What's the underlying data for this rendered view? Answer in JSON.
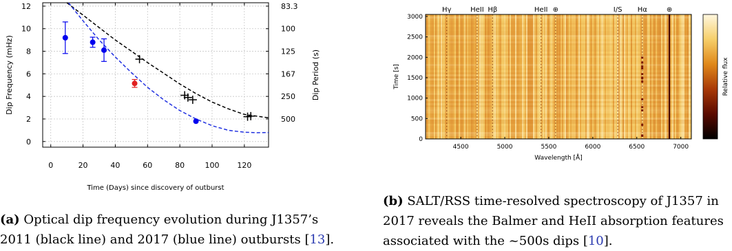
{
  "figure_a": {
    "chart_data": {
      "type": "scatter",
      "xlabel": "Time (Days) since discovery of outburst",
      "ylabel": "Dip Frequency (mHz)",
      "ylabel_right": "Dip Period (s)",
      "xlim": [
        -5,
        135
      ],
      "ylim": [
        -0.5,
        12.3
      ],
      "x_ticks": [
        0,
        20,
        40,
        60,
        80,
        100,
        120
      ],
      "y_ticks": [
        0,
        2,
        4,
        6,
        8,
        10,
        12
      ],
      "right_ticks": [
        {
          "label": "83.3",
          "freq": 12
        },
        {
          "label": "100",
          "freq": 10
        },
        {
          "label": "125",
          "freq": 8
        },
        {
          "label": "167",
          "freq": 6
        },
        {
          "label": "250",
          "freq": 4
        },
        {
          "label": "500",
          "freq": 2
        }
      ],
      "grid": true,
      "series": [
        {
          "color": "#0000ee",
          "marker": "circle",
          "points": [
            {
              "x": 9,
              "y": 9.2,
              "err": 1.4
            },
            {
              "x": 26,
              "y": 8.8,
              "err": 0.45
            },
            {
              "x": 33,
              "y": 8.1,
              "err": 1.0
            },
            {
              "x": 90,
              "y": 1.8,
              "err": 0
            }
          ]
        },
        {
          "color": "#e02020",
          "marker": "circle",
          "points": [
            {
              "x": 52,
              "y": 5.15,
              "err": 0.35
            }
          ]
        },
        {
          "color": "#000000",
          "marker": "plus",
          "points": [
            {
              "x": 55,
              "y": 7.3
            },
            {
              "x": 83,
              "y": 4.1
            },
            {
              "x": 85,
              "y": 3.9
            },
            {
              "x": 88,
              "y": 3.7
            },
            {
              "x": 122,
              "y": 2.2
            },
            {
              "x": 124,
              "y": 2.25
            }
          ]
        }
      ],
      "curves": [
        {
          "color": "#000000",
          "dash": true,
          "x": [
            10,
            20,
            30,
            40,
            50,
            60,
            70,
            80,
            90,
            100,
            110,
            120,
            135
          ],
          "y": [
            12.3,
            11.2,
            10.1,
            9.0,
            8.0,
            7.0,
            6.05,
            5.1,
            4.25,
            3.5,
            2.9,
            2.4,
            2.1
          ]
        },
        {
          "color": "#2030e0",
          "dash": true,
          "x": [
            11,
            20,
            30,
            40,
            50,
            60,
            70,
            80,
            90,
            100,
            110,
            120,
            128,
            135
          ],
          "y": [
            12.3,
            10.7,
            9.0,
            7.5,
            6.1,
            4.8,
            3.7,
            2.75,
            2.0,
            1.4,
            1.0,
            0.82,
            0.78,
            0.8
          ]
        }
      ]
    }
  },
  "figure_b": {
    "chart_data": {
      "type": "heatmap",
      "xlabel": "Wavelength [Å]",
      "ylabel": "Time [s]",
      "colorbar_label": "Relative flux",
      "xlim": [
        4100,
        7120
      ],
      "ylim": [
        0,
        3050
      ],
      "x_ticks": [
        4500,
        5000,
        5500,
        6000,
        6500,
        7000
      ],
      "y_ticks": [
        0,
        500,
        1000,
        1500,
        2000,
        2500,
        3000
      ],
      "line_labels": [
        {
          "label": "Hγ",
          "wavelength": 4340
        },
        {
          "label": "HeII",
          "wavelength": 4686
        },
        {
          "label": "Hβ",
          "wavelength": 4861
        },
        {
          "label": "HeII",
          "wavelength": 5412
        },
        {
          "label": "⊕",
          "wavelength": 5577
        },
        {
          "label": "I/S",
          "wavelength": 6284
        },
        {
          "label": "Hα",
          "wavelength": 6563
        },
        {
          "label": "⊕",
          "wavelength": 6870
        }
      ],
      "colormap": [
        "#000000",
        "#5a0a00",
        "#a83a08",
        "#e0881a",
        "#f6cf6a",
        "#fff7df"
      ]
    }
  },
  "caption_a": {
    "tag": "(a)",
    "line1": " Optical dip frequency evolution during J1357’s",
    "line2_pre": "2011 (black line) and 2017 (blue line) outbursts [",
    "cite": "13",
    "line2_post": "]."
  },
  "caption_b": {
    "tag": "(b)",
    "line1": " SALT/RSS time-resolved spectroscopy of J1357 in",
    "line2": "2017 reveals the Balmer and HeII absorption features",
    "line3_pre": "associated with the ~500s dips [",
    "cite": "10",
    "line3_post": "]."
  }
}
